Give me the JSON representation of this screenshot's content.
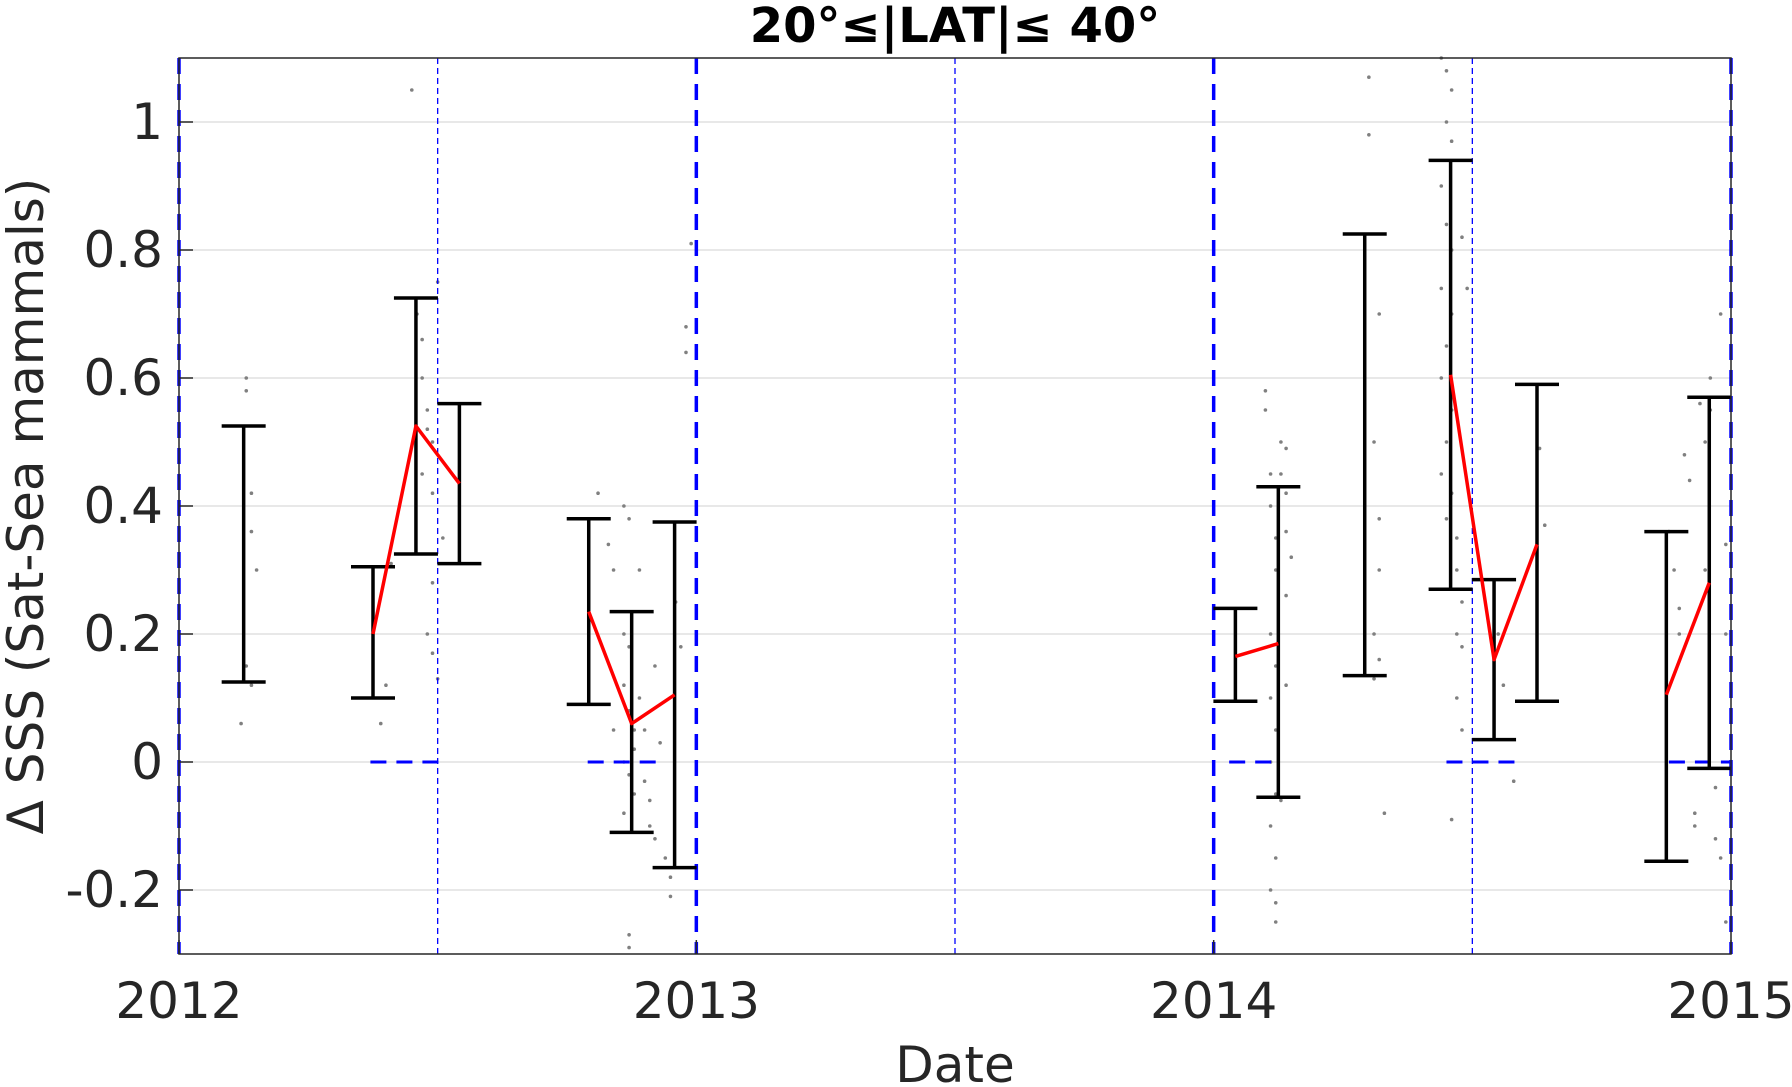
{
  "chart_data": {
    "type": "line",
    "title": "20°≤|LAT|≤ 40°",
    "xlabel": "Date",
    "ylabel": "Δ SSS (Sat-Sea mammals)",
    "xlim": [
      2012.0,
      2015.0
    ],
    "ylim": [
      -0.3,
      1.1
    ],
    "x_ticks": [
      2012,
      2013,
      2014,
      2015
    ],
    "x_tick_labels": [
      "2012",
      "2013",
      "2014",
      "2015"
    ],
    "y_ticks": [
      -0.2,
      0,
      0.2,
      0.4,
      0.6,
      0.8,
      1
    ],
    "y_tick_labels": [
      "-0.2",
      "0",
      "0.2",
      "0.4",
      "0.6",
      "0.8",
      "1"
    ],
    "grid": "horizontal",
    "colors": {
      "mean_line": "#ff0000",
      "error_bar": "#000000",
      "reference": "#0000ff",
      "points": "#808080",
      "grid": "#d9d9d9"
    },
    "year_boundaries": [
      2012.0,
      2013.0,
      2014.0,
      2015.0
    ],
    "mid_year_lines": [
      2012.5,
      2013.5,
      2014.5
    ],
    "zero_reference_segments": [
      [
        2012.37,
        2012.52
      ],
      [
        2012.79,
        2012.94
      ],
      [
        2014.03,
        2014.12
      ],
      [
        2014.45,
        2014.6
      ],
      [
        2014.88,
        2015.0
      ]
    ],
    "error_bars": [
      {
        "x": 2012.125,
        "low": 0.125,
        "high": 0.525
      },
      {
        "x": 2012.375,
        "low": 0.1,
        "high": 0.305
      },
      {
        "x": 2012.458,
        "low": 0.325,
        "high": 0.725
      },
      {
        "x": 2012.542,
        "low": 0.31,
        "high": 0.56
      },
      {
        "x": 2012.792,
        "low": 0.09,
        "high": 0.38
      },
      {
        "x": 2012.875,
        "low": -0.11,
        "high": 0.235
      },
      {
        "x": 2012.958,
        "low": -0.165,
        "high": 0.375
      },
      {
        "x": 2014.042,
        "low": 0.095,
        "high": 0.24
      },
      {
        "x": 2014.125,
        "low": -0.055,
        "high": 0.43
      },
      {
        "x": 2014.292,
        "low": 0.135,
        "high": 0.825
      },
      {
        "x": 2014.458,
        "low": 0.27,
        "high": 0.94
      },
      {
        "x": 2014.542,
        "low": 0.035,
        "high": 0.285
      },
      {
        "x": 2014.625,
        "low": 0.095,
        "high": 0.59
      },
      {
        "x": 2014.875,
        "low": -0.155,
        "high": 0.36
      },
      {
        "x": 2014.958,
        "low": -0.01,
        "high": 0.57
      }
    ],
    "series": [
      {
        "x": [
          2012.375,
          2012.458,
          2012.542
        ],
        "values": [
          0.2,
          0.525,
          0.435
        ]
      },
      {
        "x": [
          2012.792,
          2012.875,
          2012.958
        ],
        "values": [
          0.235,
          0.06,
          0.105
        ]
      },
      {
        "x": [
          2014.042,
          2014.125
        ],
        "values": [
          0.165,
          0.185
        ]
      },
      {
        "x": [
          2014.458,
          2014.542,
          2014.625
        ],
        "values": [
          0.605,
          0.16,
          0.34
        ]
      },
      {
        "x": [
          2014.875,
          2014.958
        ],
        "values": [
          0.105,
          0.28
        ]
      }
    ],
    "scatter_points": [
      [
        2012.13,
        0.6
      ],
      [
        2012.13,
        0.58
      ],
      [
        2012.14,
        0.42
      ],
      [
        2012.14,
        0.36
      ],
      [
        2012.15,
        0.3
      ],
      [
        2012.13,
        0.15
      ],
      [
        2012.14,
        0.12
      ],
      [
        2012.12,
        0.06
      ],
      [
        2012.39,
        0.06
      ],
      [
        2012.4,
        0.12
      ],
      [
        2012.41,
        0.31
      ],
      [
        2012.45,
        1.05
      ],
      [
        2012.46,
        0.7
      ],
      [
        2012.47,
        0.66
      ],
      [
        2012.47,
        0.6
      ],
      [
        2012.48,
        0.55
      ],
      [
        2012.48,
        0.52
      ],
      [
        2012.49,
        0.5
      ],
      [
        2012.47,
        0.45
      ],
      [
        2012.49,
        0.42
      ],
      [
        2012.49,
        0.28
      ],
      [
        2012.48,
        0.2
      ],
      [
        2012.49,
        0.17
      ],
      [
        2012.5,
        0.13
      ],
      [
        2012.5,
        0.75
      ],
      [
        2012.51,
        0.35
      ],
      [
        2012.81,
        0.42
      ],
      [
        2012.83,
        0.34
      ],
      [
        2012.84,
        0.3
      ],
      [
        2012.84,
        0.05
      ],
      [
        2012.86,
        0.4
      ],
      [
        2012.87,
        0.38
      ],
      [
        2012.86,
        0.2
      ],
      [
        2012.87,
        0.18
      ],
      [
        2012.86,
        0.12
      ],
      [
        2012.87,
        0.08
      ],
      [
        2012.88,
        0.05
      ],
      [
        2012.88,
        0.02
      ],
      [
        2012.86,
        0.0
      ],
      [
        2012.87,
        -0.02
      ],
      [
        2012.88,
        -0.05
      ],
      [
        2012.86,
        -0.08
      ],
      [
        2012.87,
        -0.27
      ],
      [
        2012.87,
        -0.29
      ],
      [
        2012.89,
        0.3
      ],
      [
        2012.89,
        0.1
      ],
      [
        2012.9,
        0.05
      ],
      [
        2012.9,
        -0.03
      ],
      [
        2012.91,
        -0.06
      ],
      [
        2012.91,
        -0.1
      ],
      [
        2012.92,
        -0.12
      ],
      [
        2012.92,
        0.15
      ],
      [
        2012.93,
        0.03
      ],
      [
        2012.94,
        -0.15
      ],
      [
        2012.95,
        -0.18
      ],
      [
        2012.95,
        -0.21
      ],
      [
        2012.96,
        0.25
      ],
      [
        2012.97,
        0.18
      ],
      [
        2012.98,
        0.68
      ],
      [
        2012.99,
        0.81
      ],
      [
        2012.98,
        0.64
      ],
      [
        2014.1,
        0.58
      ],
      [
        2014.1,
        0.55
      ],
      [
        2014.11,
        0.45
      ],
      [
        2014.11,
        0.4
      ],
      [
        2014.12,
        0.35
      ],
      [
        2014.12,
        0.3
      ],
      [
        2014.11,
        0.2
      ],
      [
        2014.12,
        0.15
      ],
      [
        2014.11,
        0.1
      ],
      [
        2014.12,
        0.05
      ],
      [
        2014.11,
        0.0
      ],
      [
        2014.12,
        -0.05
      ],
      [
        2014.11,
        -0.1
      ],
      [
        2014.12,
        -0.15
      ],
      [
        2014.11,
        -0.2
      ],
      [
        2014.12,
        -0.22
      ],
      [
        2014.12,
        -0.25
      ],
      [
        2014.13,
        0.5
      ],
      [
        2014.13,
        0.45
      ],
      [
        2014.14,
        0.42
      ],
      [
        2014.14,
        0.36
      ],
      [
        2014.14,
        0.26
      ],
      [
        2014.14,
        0.12
      ],
      [
        2014.13,
        -0.06
      ],
      [
        2014.14,
        0.49
      ],
      [
        2014.15,
        0.32
      ],
      [
        2014.3,
        1.07
      ],
      [
        2014.3,
        0.98
      ],
      [
        2014.32,
        0.7
      ],
      [
        2014.31,
        0.5
      ],
      [
        2014.32,
        0.38
      ],
      [
        2014.32,
        0.3
      ],
      [
        2014.31,
        0.2
      ],
      [
        2014.32,
        0.16
      ],
      [
        2014.31,
        0.13
      ],
      [
        2014.33,
        -0.08
      ],
      [
        2014.44,
        1.1
      ],
      [
        2014.45,
        1.08
      ],
      [
        2014.46,
        1.05
      ],
      [
        2014.45,
        1.0
      ],
      [
        2014.46,
        0.97
      ],
      [
        2014.44,
        0.9
      ],
      [
        2014.45,
        0.84
      ],
      [
        2014.46,
        0.8
      ],
      [
        2014.44,
        0.74
      ],
      [
        2014.46,
        0.7
      ],
      [
        2014.45,
        0.65
      ],
      [
        2014.44,
        0.6
      ],
      [
        2014.46,
        0.55
      ],
      [
        2014.45,
        0.5
      ],
      [
        2014.44,
        0.45
      ],
      [
        2014.46,
        0.42
      ],
      [
        2014.45,
        0.38
      ],
      [
        2014.47,
        0.35
      ],
      [
        2014.47,
        0.3
      ],
      [
        2014.48,
        0.25
      ],
      [
        2014.47,
        0.2
      ],
      [
        2014.48,
        0.18
      ],
      [
        2014.47,
        0.1
      ],
      [
        2014.48,
        0.05
      ],
      [
        2014.46,
        -0.09
      ],
      [
        2014.48,
        0.82
      ],
      [
        2014.49,
        0.74
      ],
      [
        2014.55,
        0.2
      ],
      [
        2014.56,
        0.12
      ],
      [
        2014.58,
        -0.03
      ],
      [
        2014.63,
        0.49
      ],
      [
        2014.64,
        0.37
      ],
      [
        2014.88,
        0.36
      ],
      [
        2014.89,
        0.3
      ],
      [
        2014.9,
        0.24
      ],
      [
        2014.9,
        0.2
      ],
      [
        2014.91,
        0.48
      ],
      [
        2014.92,
        0.44
      ],
      [
        2014.93,
        -0.08
      ],
      [
        2014.93,
        -0.1
      ],
      [
        2014.94,
        0.56
      ],
      [
        2014.95,
        0.5
      ],
      [
        2014.95,
        0.3
      ],
      [
        2014.96,
        0.6
      ],
      [
        2014.96,
        0.55
      ],
      [
        2014.97,
        -0.04
      ],
      [
        2014.97,
        -0.12
      ],
      [
        2014.98,
        -0.15
      ],
      [
        2014.98,
        0.7
      ],
      [
        2014.99,
        0.34
      ],
      [
        2014.99,
        0.2
      ],
      [
        2014.99,
        -0.25
      ]
    ]
  }
}
